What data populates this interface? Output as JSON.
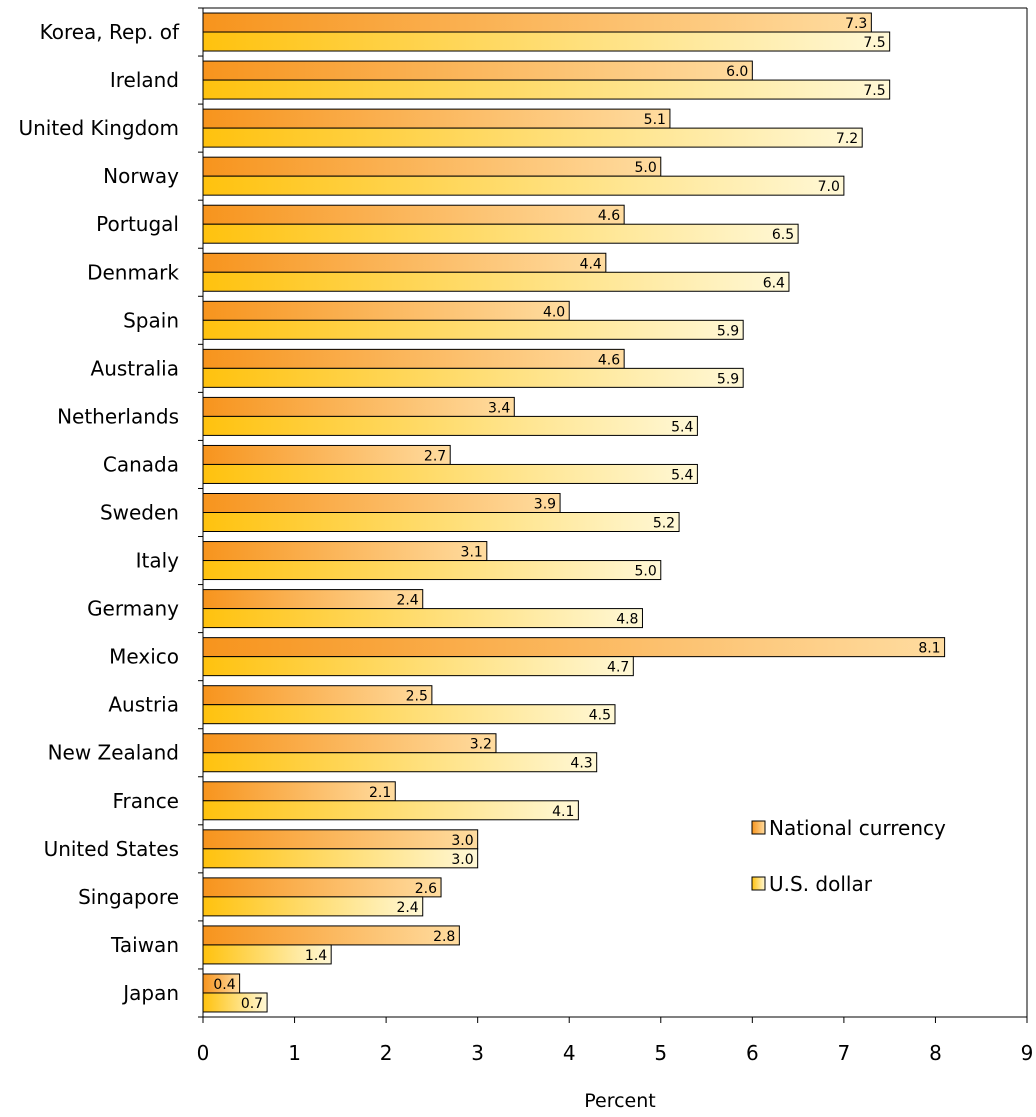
{
  "chart_data": {
    "type": "bar",
    "orientation": "horizontal",
    "categories": [
      "Korea, Rep. of",
      "Ireland",
      "United Kingdom",
      "Norway",
      "Portugal",
      "Denmark",
      "Spain",
      "Australia",
      "Netherlands",
      "Canada",
      "Sweden",
      "Italy",
      "Germany",
      "Mexico",
      "Austria",
      "New Zealand",
      "France",
      "United States",
      "Singapore",
      "Taiwan",
      "Japan"
    ],
    "series": [
      {
        "name": "National currency",
        "color": "#F7941D",
        "values": [
          7.3,
          6.0,
          5.1,
          5.0,
          4.6,
          4.4,
          4.0,
          4.6,
          3.4,
          2.7,
          3.9,
          3.1,
          2.4,
          8.1,
          2.5,
          3.2,
          2.1,
          3.0,
          2.6,
          2.8,
          0.4
        ]
      },
      {
        "name": "U.S. dollar",
        "color": "#FFE9A0",
        "values": [
          7.5,
          7.5,
          7.2,
          7.0,
          6.5,
          6.4,
          5.9,
          5.9,
          5.4,
          5.4,
          5.2,
          5.0,
          4.8,
          4.7,
          4.5,
          4.3,
          4.1,
          3.0,
          2.4,
          1.4,
          0.7
        ]
      }
    ],
    "value_labels": {
      "national": [
        "7.3",
        "6.0",
        "5.1",
        "5.0",
        "4.6",
        "4.4",
        "4.0",
        "4.6",
        "3.4",
        "2.7",
        "3.9",
        "3.1",
        "2.4",
        "8.1",
        "2.5",
        "3.2",
        "2.1",
        "3.0",
        "2.6",
        "2.8",
        "0.4"
      ],
      "dollar": [
        "7.5",
        "7.5",
        "7.2",
        "7.0",
        "6.5",
        "6.4",
        "5.9",
        "5.9",
        "5.4",
        "5.4",
        "5.2",
        "5.0",
        "4.8",
        "4.7",
        "4.5",
        "4.3",
        "4.1",
        "3.0",
        "2.4",
        "1.4",
        "0.7"
      ]
    },
    "xlabel": "Percent",
    "ylabel": "",
    "xlim": [
      0,
      9
    ],
    "xticks": [
      "0",
      "1",
      "2",
      "3",
      "4",
      "5",
      "6",
      "7",
      "8",
      "9"
    ],
    "grid": false,
    "legend": {
      "position": "right",
      "entries": [
        "National currency",
        "U.S. dollar"
      ]
    }
  }
}
